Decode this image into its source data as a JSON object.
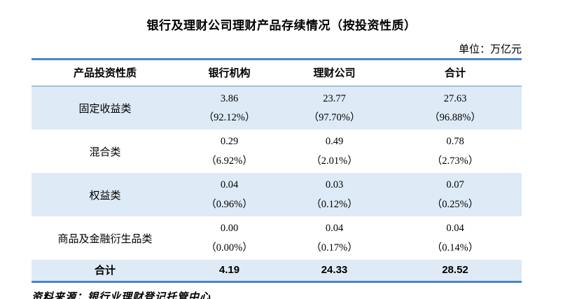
{
  "chart_data": {
    "type": "table",
    "title": "银行及理财公司理财产品存续情况（按投资性质）",
    "unit": "单位：万亿元",
    "columns": [
      "产品投资性质",
      "银行机构",
      "理财公司",
      "合计"
    ],
    "rows": [
      {
        "category": "固定收益类",
        "bank_amount": "3.86",
        "bank_pct": "（92.12%）",
        "company_amount": "23.77",
        "company_pct": "（97.70%）",
        "total_amount": "27.63",
        "total_pct": "（96.88%）"
      },
      {
        "category": "混合类",
        "bank_amount": "0.29",
        "bank_pct": "（6.92%）",
        "company_amount": "0.49",
        "company_pct": "（2.01%）",
        "total_amount": "0.78",
        "total_pct": "（2.73%）"
      },
      {
        "category": "权益类",
        "bank_amount": "0.04",
        "bank_pct": "（0.96%）",
        "company_amount": "0.03",
        "company_pct": "（0.12%）",
        "total_amount": "0.07",
        "total_pct": "（0.25%）"
      },
      {
        "category": "商品及金融衍生品类",
        "bank_amount": "0.00",
        "bank_pct": "（0.00%）",
        "company_amount": "0.04",
        "company_pct": "（0.17%）",
        "total_amount": "0.04",
        "total_pct": "（0.14%）"
      }
    ],
    "total_row": {
      "label": "合计",
      "bank": "4.19",
      "company": "24.33",
      "total": "28.52"
    },
    "source": "资料来源：银行业理财登记托管中心",
    "colors": {
      "border_blue": "#4A86C4",
      "divider_blue": "#9CC2E5",
      "row_blue": "#DEEAF6"
    }
  }
}
